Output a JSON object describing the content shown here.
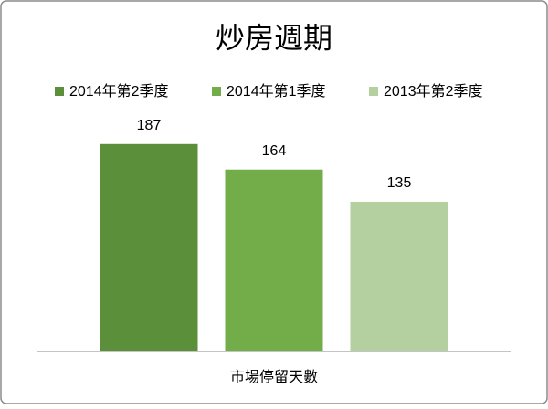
{
  "chart_data": {
    "type": "bar",
    "title": "炒房週期",
    "categories": [
      "市場停留天數"
    ],
    "series": [
      {
        "name": "2014年第2季度",
        "color": "#5b8f3a",
        "values": [
          187
        ]
      },
      {
        "name": "2014年第1季度",
        "color": "#72ad4a",
        "values": [
          164
        ]
      },
      {
        "name": "2013年第2季度",
        "color": "#b4cfa0",
        "values": [
          135
        ]
      }
    ],
    "ylim": [
      0,
      200
    ],
    "legend": "top"
  }
}
